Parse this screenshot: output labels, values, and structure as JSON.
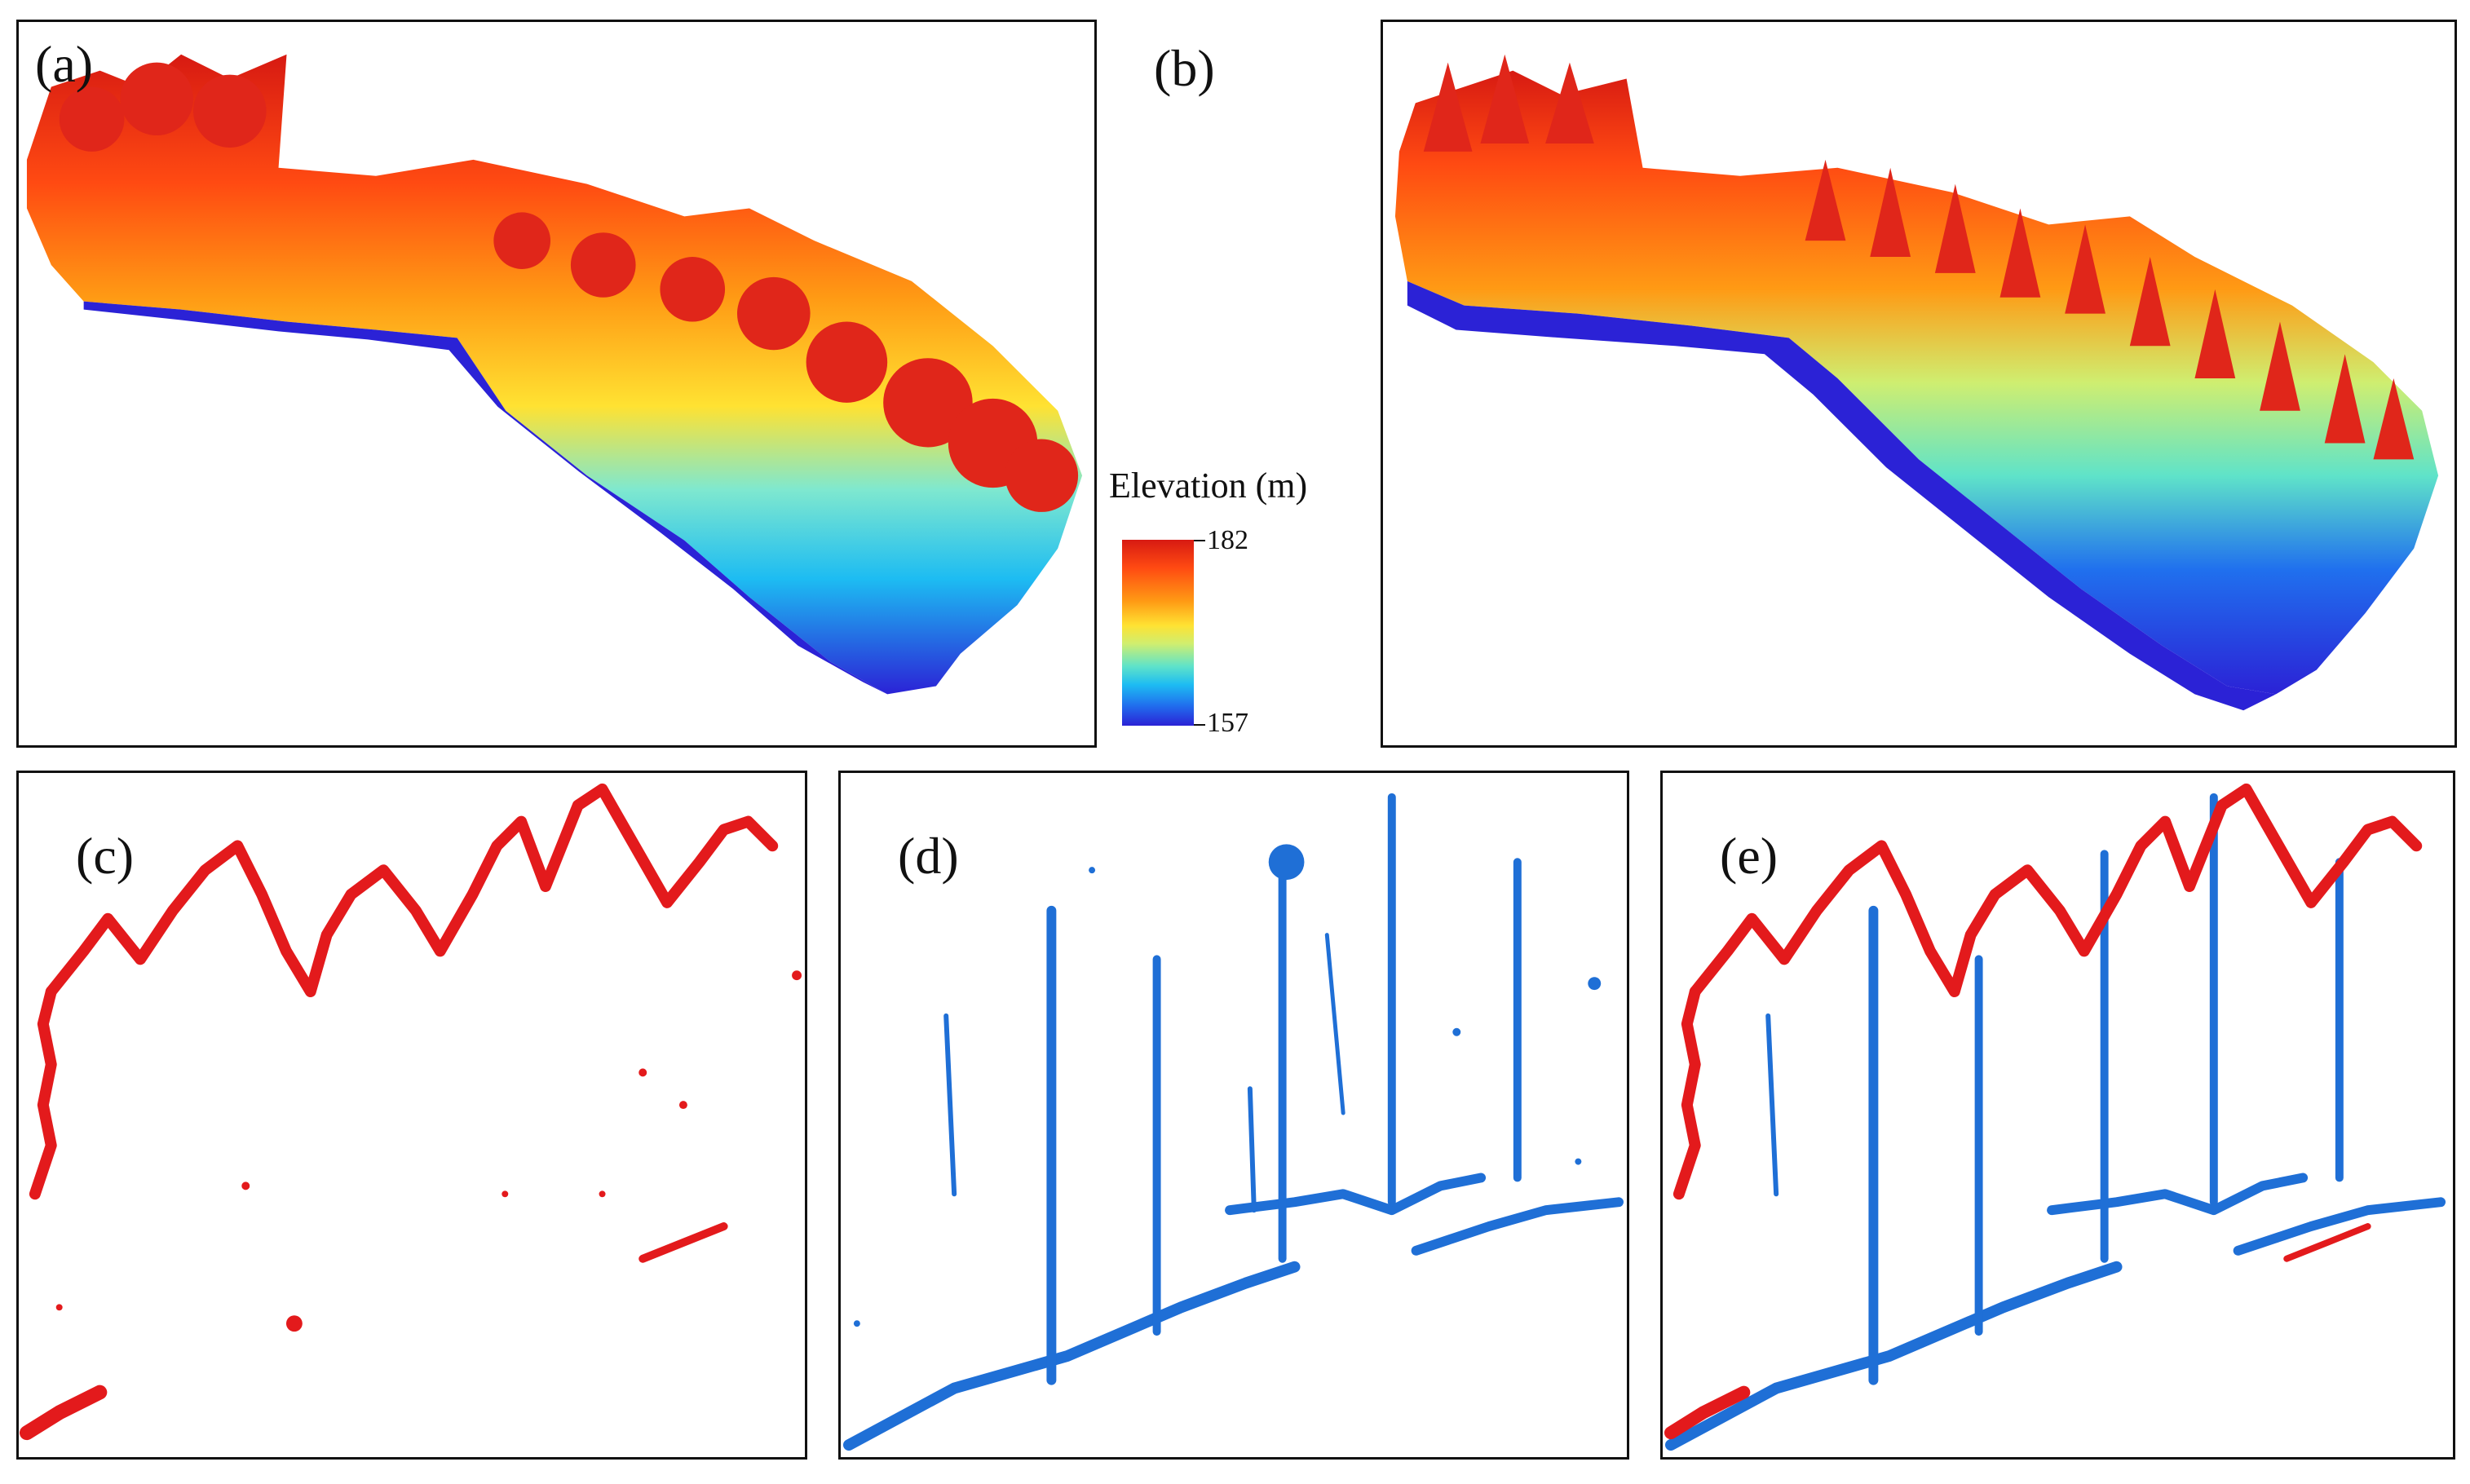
{
  "figure": {
    "panels": [
      {
        "id": "a",
        "label": "(a)"
      },
      {
        "id": "b",
        "label": "(b)"
      },
      {
        "id": "c",
        "label": "(c)"
      },
      {
        "id": "d",
        "label": "(d)"
      },
      {
        "id": "e",
        "label": "(e)"
      }
    ],
    "legend": {
      "title": "Elevation (m)",
      "max_label": "182",
      "min_label": "157"
    },
    "colors": {
      "red_points": "#e31a1c",
      "blue_points": "#1f6fd6",
      "elev_high": "#d71a12",
      "elev_low": "#2b22d6"
    }
  }
}
